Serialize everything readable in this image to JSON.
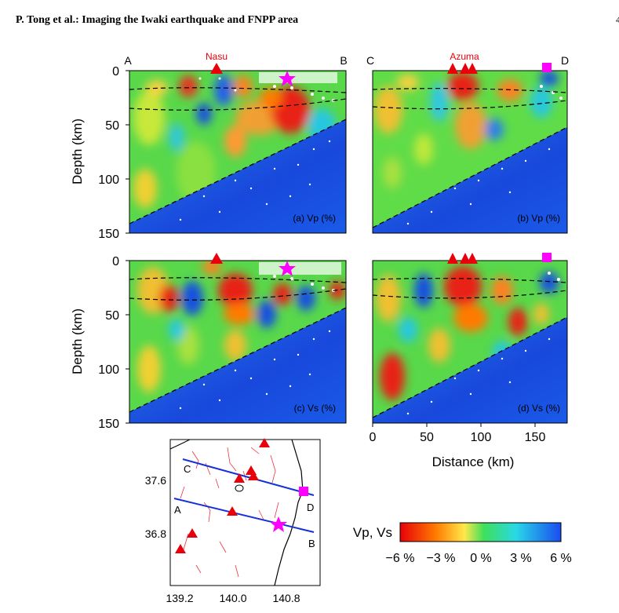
{
  "header": {
    "title": "P. Tong et al.: Imaging the Iwaki earthquake and FNPP area",
    "page_number": "4"
  },
  "volcanoes": {
    "left": "Nasu",
    "right": "Azuma"
  },
  "profile_ends": {
    "left_start": "A",
    "left_end": "B",
    "right_start": "C",
    "right_end": "D"
  },
  "axes": {
    "depth_label": "Depth (km)",
    "depth_ticks": [
      "0",
      "50",
      "100",
      "150"
    ],
    "distance_label": "Distance (km)",
    "distance_ticks": [
      "0",
      "50",
      "100",
      "150"
    ]
  },
  "panels": {
    "a": "(a) Vp (%)",
    "b": "(b) Vp (%)",
    "c": "(c) Vs (%)",
    "d": "(d) Vs (%)"
  },
  "map": {
    "lat_ticks": [
      "37.6",
      "36.8"
    ],
    "lon_ticks": [
      "139.2",
      "140.0",
      "140.8"
    ],
    "line_labels": {
      "a": "A",
      "b": "B",
      "c": "C",
      "d": "D"
    }
  },
  "colorbar": {
    "label": "Vp, Vs",
    "ticks": [
      "−6 %",
      "−3 %",
      "0 %",
      "3 %",
      "6 %"
    ],
    "colors": [
      "#e8000a",
      "#ff7a00",
      "#ffe84a",
      "#3ee05a",
      "#28d8e6",
      "#1a4cf0"
    ]
  },
  "colors": {
    "volcano": "#e8000a",
    "star": "#ff00ff",
    "profile_line": "#1530d8",
    "slab": "#1458e0"
  }
}
